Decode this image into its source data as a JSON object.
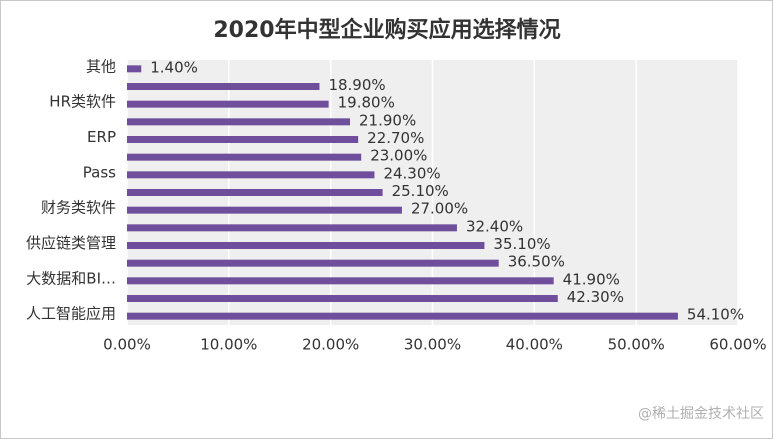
{
  "chart_data": {
    "type": "hbar",
    "title": "2020年中型企业购买应用选择情况",
    "categories": [
      "其他",
      null,
      "HR类软件",
      null,
      "ERP",
      null,
      "Pass",
      null,
      "财务类软件",
      null,
      "供应链类管理",
      null,
      "大数据和BI…",
      null,
      "人工智能应用"
    ],
    "values": [
      1.4,
      18.9,
      19.8,
      21.9,
      22.7,
      23.0,
      24.3,
      25.1,
      27.0,
      32.4,
      35.1,
      36.5,
      41.9,
      42.3,
      54.1
    ],
    "value_labels": [
      "1.40%",
      "18.90%",
      "19.80%",
      "21.90%",
      "22.70%",
      "23.00%",
      "24.30%",
      "25.10%",
      "27.00%",
      "32.40%",
      "35.10%",
      "36.50%",
      "41.90%",
      "42.30%",
      "54.10%"
    ],
    "color": "#6f4f9c",
    "xlim": [
      0,
      60
    ],
    "xticks": [
      {
        "value": 0,
        "label": "0.00%"
      },
      {
        "value": 10,
        "label": "10.00%"
      },
      {
        "value": 20,
        "label": "20.00%"
      },
      {
        "value": 30,
        "label": "30.00%"
      },
      {
        "value": 40,
        "label": "40.00%"
      },
      {
        "value": 50,
        "label": "50.00%"
      },
      {
        "value": 60,
        "label": "60.00%"
      }
    ],
    "grid": true
  },
  "watermark": "@稀土掘金技术社区"
}
